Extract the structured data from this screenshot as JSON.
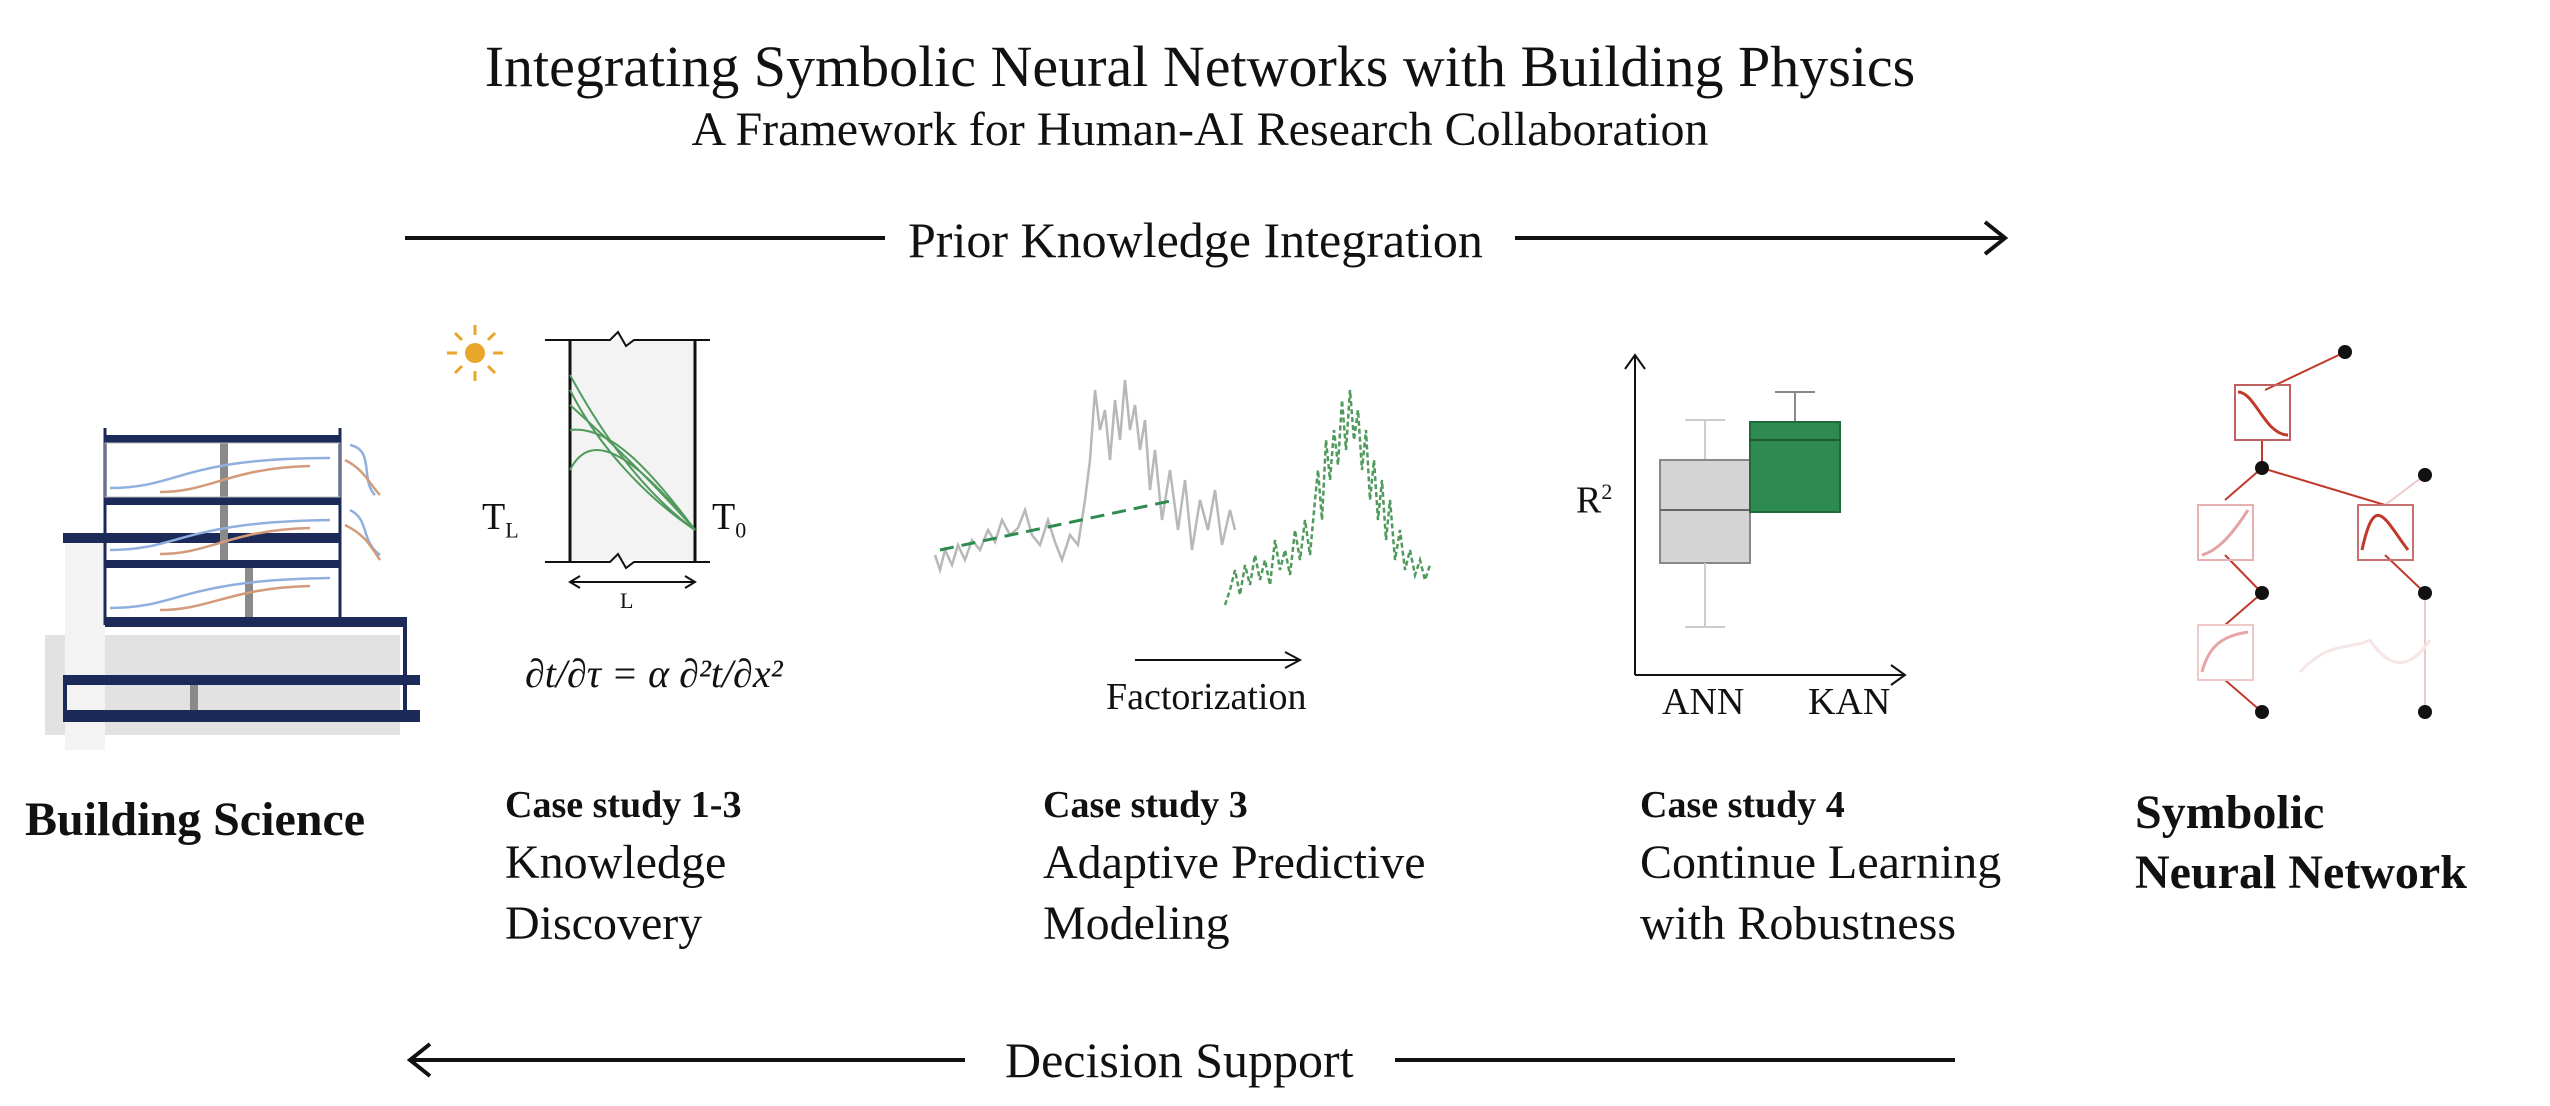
{
  "header": {
    "title": "Integrating Symbolic Neural Networks with Building Physics",
    "subtitle": "A Framework for Human-AI Research Collaboration"
  },
  "flows": {
    "top_label": "Prior Knowledge Integration",
    "bottom_label": "Decision Support"
  },
  "left": {
    "label": "Building Science"
  },
  "right": {
    "label_line1": "Symbolic",
    "label_line2": "Neural Network"
  },
  "cases": [
    {
      "label": "Case study 1-3",
      "line1": "Knowledge",
      "line2": "Discovery"
    },
    {
      "label": "Case study 3",
      "line1": "Adaptive Predictive",
      "line2": "Modeling"
    },
    {
      "label": "Case study 4",
      "line1": "Continue Learning",
      "line2": "with Robustness"
    }
  ],
  "wall_figure": {
    "left_temp": "T",
    "left_sub": "L",
    "right_temp": "T",
    "right_sub": "0",
    "length": "L",
    "equation": "∂t/∂τ = α ∂²t/∂x²"
  },
  "factorization": {
    "label": "Factorization"
  },
  "boxplot": {
    "ylabel": "R",
    "ylabel_sup": "2",
    "categories": [
      "ANN",
      "KAN"
    ]
  },
  "colors": {
    "accent_green": "#2e8b4f",
    "line_green": "#4f9a5c",
    "gray": "#b8b8b8",
    "sun": "#e8a62a",
    "navy": "#1c2a5a",
    "red": "#c0392b"
  }
}
